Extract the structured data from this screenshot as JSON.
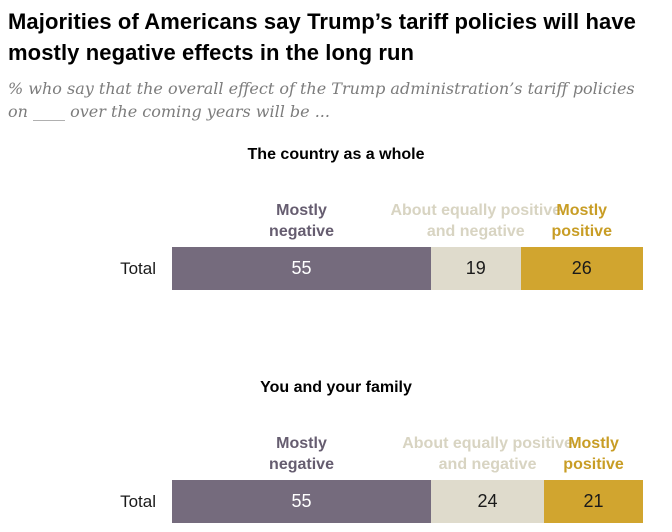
{
  "header": {
    "title": "Majorities of Americans say Trump’s tariff policies will have mostly negative effects in the long run",
    "subtitle": "% who say that the overall effect of the Trump administration’s tariff policies on ____ over the coming years will be ..."
  },
  "legend": {
    "negative": "Mostly negative",
    "neutral": "About equally positive and negative",
    "positive": "Mostly positive"
  },
  "colors": {
    "negative_bar": "#756b7d",
    "neutral_bar": "#dfdbcc",
    "positive_bar": "#d1a52f",
    "negative_text": "#665d70",
    "neutral_text": "#d8d4c2",
    "positive_text": "#c89d25",
    "value_on_dark": "#ffffff",
    "value_on_light": "#1a1a1a"
  },
  "chart_data": [
    {
      "type": "bar",
      "title": "The country as a whole",
      "row_label": "Total",
      "categories": [
        "Mostly negative",
        "About equally positive and negative",
        "Mostly positive"
      ],
      "values": [
        55,
        19,
        26
      ],
      "xlim": [
        0,
        100
      ],
      "orientation": "horizontal-stacked",
      "legend_position": "above-segments",
      "grid": false
    },
    {
      "type": "bar",
      "title": "You and your family",
      "row_label": "Total",
      "categories": [
        "Mostly negative",
        "About equally positive and negative",
        "Mostly positive"
      ],
      "values": [
        55,
        24,
        21
      ],
      "xlim": [
        0,
        100
      ],
      "orientation": "horizontal-stacked",
      "legend_position": "above-segments",
      "grid": false
    }
  ]
}
